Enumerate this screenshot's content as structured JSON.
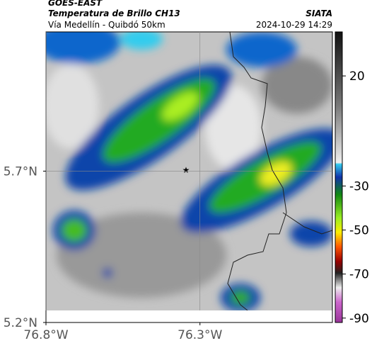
{
  "header": {
    "title": "GOES-EAST",
    "subtitle": "Temperatura de Brillo CH13",
    "route": "Vía Medellín - Quibdó 50km",
    "source": "SIATA",
    "datetime": "2024-10-29 14:29"
  },
  "map": {
    "xlim": [
      -76.8,
      -75.87
    ],
    "ylim": [
      5.2,
      6.16
    ],
    "xticks": [
      {
        "value": -76.8,
        "label": "76.8°W"
      },
      {
        "value": -76.3,
        "label": "76.3°W"
      }
    ],
    "yticks": [
      {
        "value": 5.7,
        "label": "5.7°N"
      },
      {
        "value": 5.2,
        "label": "5.2°N"
      }
    ],
    "colorbar": {
      "lim": [
        40,
        -92
      ],
      "ticks": [
        20,
        -30,
        -50,
        -70,
        -90
      ]
    }
  }
}
